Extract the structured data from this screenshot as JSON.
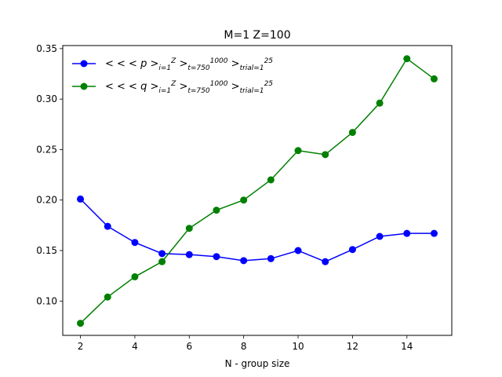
{
  "chart_data": {
    "type": "line",
    "title": "M=1 Z=100",
    "xlabel": "N - group size",
    "ylabel": "",
    "xlim": [
      1.35,
      15.65
    ],
    "ylim": [
      0.066,
      0.353
    ],
    "xticks": [
      2,
      4,
      6,
      8,
      10,
      12,
      14
    ],
    "yticks": [
      0.1,
      0.15,
      0.2,
      0.25,
      0.3,
      0.35
    ],
    "ytick_labels": [
      "0.10",
      "0.15",
      "0.20",
      "0.25",
      "0.30",
      "0.35"
    ],
    "grid": false,
    "legend_position": "top-left",
    "x": [
      2,
      3,
      4,
      5,
      6,
      7,
      8,
      9,
      10,
      11,
      12,
      13,
      14,
      15
    ],
    "series": [
      {
        "name": "< < < p >^Z_{i=1} >^1000_{t=750} >^25_{trial=1}",
        "legend": {
          "pre": "< < < ",
          "var": "p",
          "parts": [
            {
              "op": " >",
              "sup": "Z",
              "sub": "i=1"
            },
            {
              "op": " >",
              "sup": "1000",
              "sub": "t=750"
            },
            {
              "op": " >",
              "sup": "25",
              "sub": "trial=1"
            }
          ]
        },
        "color": "#0000ff",
        "values": [
          0.201,
          0.174,
          0.158,
          0.147,
          0.146,
          0.144,
          0.14,
          0.142,
          0.15,
          0.139,
          0.151,
          0.164,
          0.167,
          0.167
        ]
      },
      {
        "name": "< < < q >^Z_{i=1} >^1000_{t=750} >^25_{trial=1}",
        "legend": {
          "pre": "< < < ",
          "var": "q",
          "parts": [
            {
              "op": " >",
              "sup": "Z",
              "sub": "i=1"
            },
            {
              "op": " >",
              "sup": "1000",
              "sub": "t=750"
            },
            {
              "op": " >",
              "sup": "25",
              "sub": "trial=1"
            }
          ]
        },
        "color": "#008000",
        "values": [
          0.078,
          0.104,
          0.124,
          0.139,
          0.172,
          0.19,
          0.2,
          0.22,
          0.249,
          0.245,
          0.267,
          0.296,
          0.34,
          0.32
        ]
      }
    ]
  }
}
